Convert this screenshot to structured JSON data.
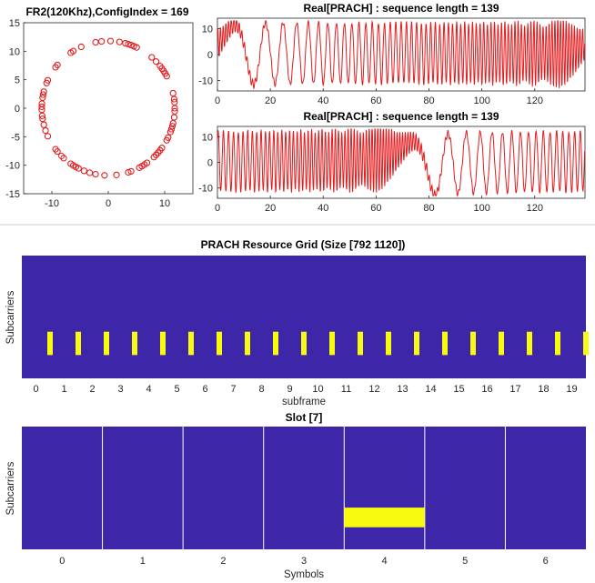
{
  "colors": {
    "trace": "#e41a1c",
    "grid_bg": "#3e26a8",
    "grid_hi": "#f9fb0e",
    "slot_line": "#ffffff",
    "separator": "#cfcfcf"
  },
  "chart_data": [
    {
      "type": "scatter",
      "title": "FR2(120Khz),ConfigIndex = 169",
      "xlim": [
        -15,
        15
      ],
      "ylim": [
        -15,
        15
      ],
      "xticks": [
        "-10",
        "0",
        "10"
      ],
      "yticks": [
        "15",
        "10",
        "5",
        "0",
        "-5",
        "-10",
        "-15"
      ],
      "marker": "circle-open",
      "n_points": 139,
      "radius": 11.79
    },
    {
      "type": "line",
      "title": "Real[PRACH] : sequence length = 139",
      "xlim": [
        0,
        139
      ],
      "ylim": [
        -14,
        14
      ],
      "xticks": [
        "0",
        "20",
        "40",
        "60",
        "80",
        "100",
        "120"
      ],
      "yticks": [
        "10",
        "0",
        "-10"
      ],
      "amplitude": 11.79,
      "root": 1
    },
    {
      "type": "line",
      "title": "Real[PRACH] : sequence length = 139",
      "xlim": [
        0,
        139
      ],
      "ylim": [
        -14,
        14
      ],
      "xticks": [
        "0",
        "20",
        "40",
        "60",
        "80",
        "100",
        "120"
      ],
      "yticks": [
        "10",
        "0",
        "-10"
      ],
      "amplitude": 11.79,
      "root": 1,
      "shift": 69
    },
    {
      "type": "heatmap",
      "title": "PRACH Resource Grid (Size [792 1120])",
      "xlabel": "subframe",
      "ylabel": "Subcarriers",
      "xlim": [
        -0.5,
        19.5
      ],
      "xticks": [
        "0",
        "1",
        "2",
        "3",
        "4",
        "5",
        "6",
        "7",
        "8",
        "9",
        "10",
        "11",
        "12",
        "13",
        "14",
        "15",
        "16",
        "17",
        "18",
        "19"
      ],
      "occasions": [
        0.5,
        1.5,
        2.5,
        3.5,
        4.5,
        5.5,
        6.5,
        7.5,
        8.5,
        9.5,
        10.5,
        11.5,
        12.5,
        13.5,
        14.5,
        15.5,
        16.5,
        17.5,
        18.5,
        19.5
      ],
      "band_frac": [
        0.62,
        0.81
      ]
    },
    {
      "type": "heatmap",
      "title": "Slot [7]",
      "xlabel": "Symbols",
      "ylabel": "Subcarriers",
      "xlim": [
        -0.5,
        6.5
      ],
      "xticks": [
        "0",
        "1",
        "2",
        "3",
        "4",
        "5",
        "6"
      ],
      "slot_boundaries": [
        0.5,
        1.5,
        2.5,
        3.5,
        4.5,
        5.5
      ],
      "highlight": {
        "symbol": 4,
        "band_frac": [
          0.66,
          0.82
        ]
      }
    }
  ]
}
